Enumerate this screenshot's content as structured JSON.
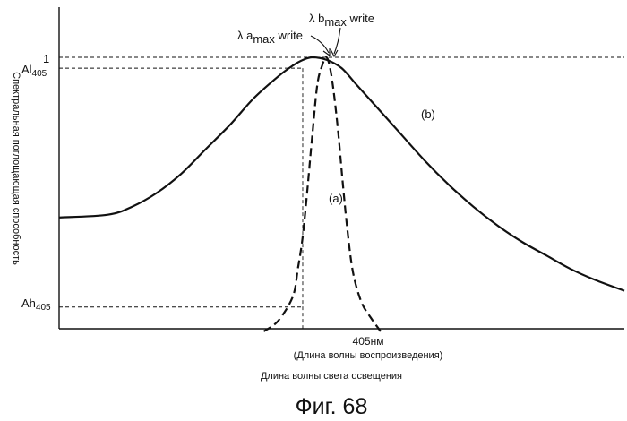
{
  "chart_data": {
    "type": "line",
    "title": "",
    "xlabel": "Длина волны света освещения",
    "ylabel": "Спектральная поглощающая способность",
    "x_tick": "405нм",
    "x_tick_note": "(Длина волны воспроизведения)",
    "y_ticks": {
      "one": "1",
      "al405_main": "Al",
      "al405_sub": "405",
      "ah405_main": "Ah",
      "ah405_sub": "405"
    },
    "annotations": {
      "a_max_prefix": "λ a",
      "a_max_sub": "max",
      "a_max_suffix": " write",
      "b_max_prefix": "λ b",
      "b_max_sub": "max",
      "b_max_suffix": " write",
      "curve_a": "(a)",
      "curve_b": "(b)"
    },
    "ylim": [
      0,
      1
    ],
    "series": [
      {
        "key": "b",
        "style": "solid",
        "points": [
          [
            355,
            0.41
          ],
          [
            365,
            0.42
          ],
          [
            370,
            0.45
          ],
          [
            375,
            0.5
          ],
          [
            380,
            0.57
          ],
          [
            385,
            0.66
          ],
          [
            390,
            0.75
          ],
          [
            395,
            0.85
          ],
          [
            400,
            0.93
          ],
          [
            403,
            0.97
          ],
          [
            405,
            0.99
          ],
          [
            407,
            1.0
          ],
          [
            410,
            0.99
          ],
          [
            413,
            0.96
          ],
          [
            416,
            0.9
          ],
          [
            420,
            0.82
          ],
          [
            425,
            0.72
          ],
          [
            430,
            0.62
          ],
          [
            435,
            0.53
          ],
          [
            440,
            0.45
          ],
          [
            445,
            0.38
          ],
          [
            450,
            0.32
          ],
          [
            455,
            0.27
          ],
          [
            460,
            0.22
          ],
          [
            465,
            0.18
          ],
          [
            471,
            0.14
          ]
        ]
      },
      {
        "key": "a",
        "style": "dashed",
        "points": [
          [
            397,
            -0.01
          ],
          [
            400,
            0.03
          ],
          [
            403,
            0.12
          ],
          [
            404,
            0.22
          ],
          [
            405,
            0.34
          ],
          [
            406,
            0.52
          ],
          [
            407,
            0.72
          ],
          [
            408,
            0.9
          ],
          [
            409,
            0.97
          ],
          [
            409.8,
            1.0
          ],
          [
            410.5,
            0.97
          ],
          [
            411.3,
            0.88
          ],
          [
            412.3,
            0.72
          ],
          [
            413.2,
            0.54
          ],
          [
            414.2,
            0.36
          ],
          [
            415.3,
            0.21
          ],
          [
            417,
            0.1
          ],
          [
            419,
            0.04
          ],
          [
            421,
            -0.01
          ]
        ]
      }
    ],
    "reference_lines": {
      "x": 405,
      "y_one": 1.0,
      "y_al405": 0.96,
      "y_ah405": 0.08
    },
    "caption": "Фиг. 68"
  }
}
